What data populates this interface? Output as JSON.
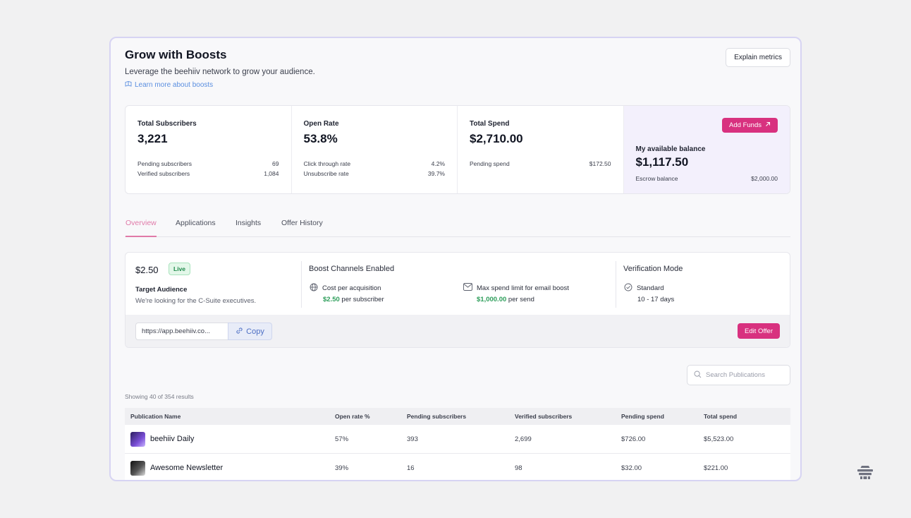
{
  "header": {
    "title": "Grow with Boosts",
    "subtitle": "Leverage the beehiiv network to grow your audience.",
    "learn_link": "Learn more about boosts",
    "explain_button": "Explain metrics"
  },
  "stats": {
    "subscribers": {
      "label": "Total Subscribers",
      "value": "3,221",
      "rows": [
        {
          "label": "Pending subscribers",
          "value": "69"
        },
        {
          "label": "Verified subscribers",
          "value": "1,084"
        }
      ]
    },
    "open_rate": {
      "label": "Open Rate",
      "value": "53.8%",
      "rows": [
        {
          "label": "Click through rate",
          "value": "4.2%"
        },
        {
          "label": "Unsubscribe rate",
          "value": "39.7%"
        }
      ]
    },
    "spend": {
      "label": "Total Spend",
      "value": "$2,710.00",
      "rows": [
        {
          "label": "Pending spend",
          "value": "$172.50"
        }
      ]
    },
    "balance": {
      "add_funds": "Add Funds",
      "label": "My available balance",
      "value": "$1,117.50",
      "rows": [
        {
          "label": "Escrow balance",
          "value": "$2,000.00"
        }
      ]
    }
  },
  "tabs": [
    {
      "label": "Overview",
      "active": true
    },
    {
      "label": "Applications",
      "active": false
    },
    {
      "label": "Insights",
      "active": false
    },
    {
      "label": "Offer History",
      "active": false
    }
  ],
  "offer": {
    "price": "$2.50",
    "status": "Live",
    "audience_label": "Target Audience",
    "audience_desc": "We're looking for the C-Suite executives.",
    "channels_title": "Boost Channels Enabled",
    "channel_1_label": "Cost per acquisition",
    "channel_1_amount": "$2.50",
    "channel_1_suffix": "per subscriber",
    "channel_2_label": "Max spend limit for email boost",
    "channel_2_amount": "$1,000.00",
    "channel_2_suffix": "per send",
    "verification_title": "Verification Mode",
    "verification_value": "Standard",
    "verification_days": "10 - 17 days",
    "url_value": "https://app.beehiiv.co...",
    "copy_label": "Copy",
    "edit_label": "Edit Offer"
  },
  "search": {
    "placeholder": "Search Publications"
  },
  "results_text": "Showing 40 of 354 results",
  "table": {
    "columns": [
      "Publication Name",
      "Open rate %",
      "Pending subscribers",
      "Verified subscribers",
      "Pending spend",
      "Total spend"
    ],
    "rows": [
      {
        "name": "beehiiv Daily",
        "open_rate": "57%",
        "pending": "393",
        "verified": "2,699",
        "pending_spend": "$726.00",
        "total_spend": "$5,523.00"
      },
      {
        "name": "Awesome Newsletter",
        "open_rate": "39%",
        "pending": "16",
        "verified": "98",
        "pending_spend": "$32.00",
        "total_spend": "$221.00"
      }
    ]
  },
  "colors": {
    "accent": "#d8317f",
    "tab_active": "#e07aa8",
    "positive": "#2e9e5b",
    "link": "#5b8fe0",
    "frame_border": "#d7d4f3"
  }
}
